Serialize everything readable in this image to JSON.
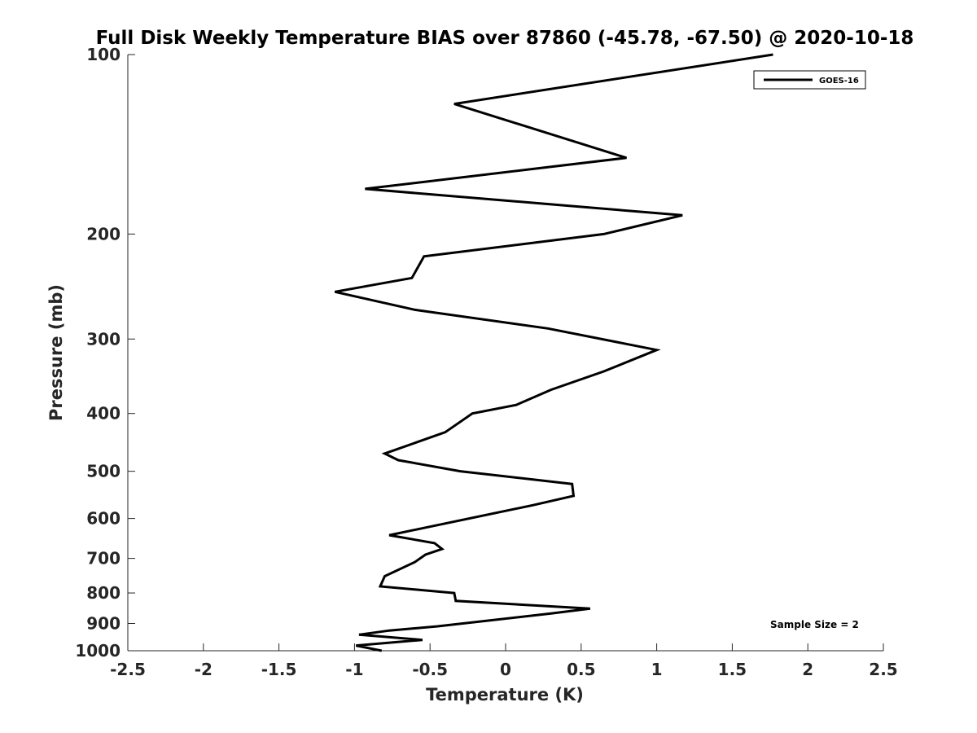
{
  "chart_data": {
    "type": "line",
    "title": "Full Disk Weekly Temperature BIAS over 87860 (-45.78, -67.50) @ 2020-10-18",
    "xlabel": "Temperature (K)",
    "ylabel": "Pressure (mb)",
    "xlim": [
      -2.5,
      2.5
    ],
    "ylim": [
      1000,
      100
    ],
    "yscale": "log",
    "x_ticks": [
      "-2.5",
      "-2",
      "-1.5",
      "-1",
      "-0.5",
      "0",
      "0.5",
      "1",
      "1.5",
      "2",
      "2.5"
    ],
    "y_ticks": [
      "100",
      "200",
      "300",
      "400",
      "500",
      "600",
      "700",
      "800",
      "900",
      "1000"
    ],
    "grid": false,
    "legend_position": "top-right",
    "series": [
      {
        "name": "GOES-16",
        "color": "#000000",
        "points": [
          {
            "x": 1.77,
            "y": 100
          },
          {
            "x": -0.34,
            "y": 121
          },
          {
            "x": 0.8,
            "y": 149
          },
          {
            "x": -0.93,
            "y": 168
          },
          {
            "x": 1.17,
            "y": 186
          },
          {
            "x": 0.65,
            "y": 200
          },
          {
            "x": -0.54,
            "y": 218
          },
          {
            "x": -0.62,
            "y": 237
          },
          {
            "x": -1.13,
            "y": 250
          },
          {
            "x": -0.6,
            "y": 268
          },
          {
            "x": 0.28,
            "y": 288
          },
          {
            "x": 1.0,
            "y": 313
          },
          {
            "x": 0.65,
            "y": 340
          },
          {
            "x": 0.3,
            "y": 365
          },
          {
            "x": 0.07,
            "y": 387
          },
          {
            "x": -0.22,
            "y": 400
          },
          {
            "x": -0.4,
            "y": 430
          },
          {
            "x": -0.8,
            "y": 467
          },
          {
            "x": -0.71,
            "y": 479
          },
          {
            "x": -0.3,
            "y": 500
          },
          {
            "x": 0.44,
            "y": 525
          },
          {
            "x": 0.45,
            "y": 550
          },
          {
            "x": 0.18,
            "y": 570
          },
          {
            "x": -0.77,
            "y": 640
          },
          {
            "x": -0.47,
            "y": 660
          },
          {
            "x": -0.42,
            "y": 675
          },
          {
            "x": -0.53,
            "y": 690
          },
          {
            "x": -0.6,
            "y": 710
          },
          {
            "x": -0.8,
            "y": 750
          },
          {
            "x": -0.83,
            "y": 780
          },
          {
            "x": -0.34,
            "y": 800
          },
          {
            "x": -0.33,
            "y": 825
          },
          {
            "x": 0.56,
            "y": 850
          },
          {
            "x": 0.3,
            "y": 866
          },
          {
            "x": -0.45,
            "y": 910
          },
          {
            "x": -0.77,
            "y": 925
          },
          {
            "x": -0.97,
            "y": 940
          },
          {
            "x": -0.55,
            "y": 959
          },
          {
            "x": -0.99,
            "y": 980
          },
          {
            "x": -0.82,
            "y": 1000
          }
        ]
      }
    ],
    "annotations": [
      {
        "text": "Sample Size = 2"
      }
    ]
  }
}
